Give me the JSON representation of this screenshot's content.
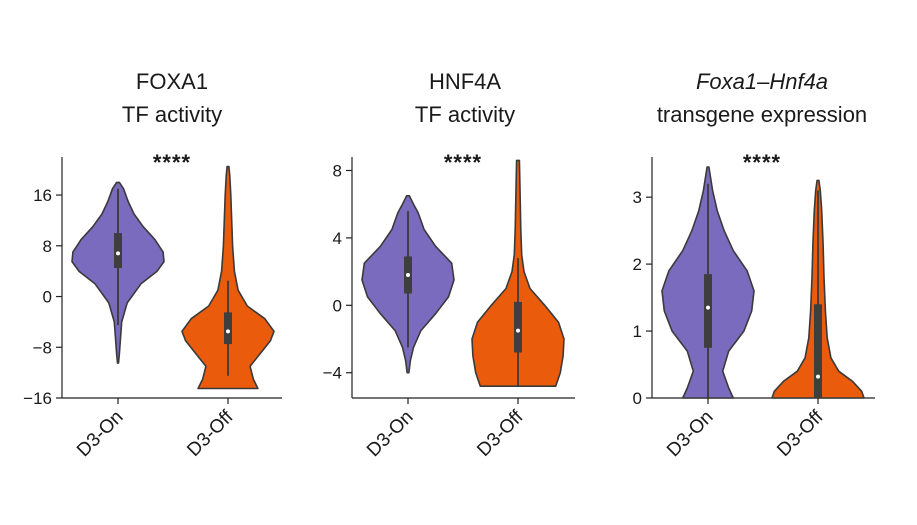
{
  "figure": {
    "colors": {
      "on": "#7a6bbf",
      "off": "#ea5b0c"
    },
    "significance_marker": "****"
  },
  "chart_data": [
    {
      "type": "violin",
      "title": [
        "FOXA1",
        "TF activity"
      ],
      "title_italic_first_line": false,
      "categories": [
        "D3-On",
        "D3-Off"
      ],
      "ylim": [
        -16,
        22
      ],
      "yticks": [
        16,
        8,
        0,
        -8,
        -16
      ],
      "ytick_labels": [
        "16",
        "8",
        "0",
        "−8",
        "−16"
      ],
      "significance": "****",
      "series": [
        {
          "name": "D3-On",
          "color": "#7a6bbf",
          "min": -10.5,
          "max": 18,
          "q1": 4.5,
          "median": 6.8,
          "q3": 10,
          "whisker_low": -4.5,
          "whisker_high": 17,
          "profile": [
            [
              -10.5,
              0.01
            ],
            [
              -9,
              0.03
            ],
            [
              -7,
              0.05
            ],
            [
              -4,
              0.08
            ],
            [
              -1,
              0.2
            ],
            [
              2,
              0.5
            ],
            [
              4,
              0.85
            ],
            [
              5.5,
              1.0
            ],
            [
              7,
              0.98
            ],
            [
              9,
              0.8
            ],
            [
              11,
              0.55
            ],
            [
              13,
              0.35
            ],
            [
              15,
              0.22
            ],
            [
              17,
              0.12
            ],
            [
              18,
              0.03
            ]
          ]
        },
        {
          "name": "D3-Off",
          "color": "#ea5b0c",
          "min": -14.5,
          "max": 20.5,
          "q1": -7.5,
          "median": -5.5,
          "q3": -2.5,
          "whisker_low": -12.5,
          "whisker_high": 2.5,
          "profile": [
            [
              -14.5,
              0.65
            ],
            [
              -13,
              0.55
            ],
            [
              -11,
              0.48
            ],
            [
              -9,
              0.7
            ],
            [
              -7,
              0.92
            ],
            [
              -5.5,
              1.0
            ],
            [
              -3.5,
              0.8
            ],
            [
              -1.5,
              0.42
            ],
            [
              1,
              0.22
            ],
            [
              4,
              0.14
            ],
            [
              8,
              0.1
            ],
            [
              12,
              0.08
            ],
            [
              16,
              0.06
            ],
            [
              19,
              0.04
            ],
            [
              20.5,
              0.02
            ]
          ]
        }
      ]
    },
    {
      "type": "violin",
      "title": [
        "HNF4A",
        "TF activity"
      ],
      "title_italic_first_line": false,
      "categories": [
        "D3-On",
        "D3-Off"
      ],
      "ylim": [
        -5.5,
        8.8
      ],
      "yticks": [
        8,
        4,
        0,
        -4
      ],
      "ytick_labels": [
        "8",
        "4",
        "0",
        "−4"
      ],
      "significance": "****",
      "series": [
        {
          "name": "D3-On",
          "color": "#7a6bbf",
          "min": -4,
          "max": 6.5,
          "q1": 0.7,
          "median": 1.8,
          "q3": 2.9,
          "whisker_low": -2.5,
          "whisker_high": 5.6,
          "profile": [
            [
              -4,
              0.02
            ],
            [
              -3.3,
              0.05
            ],
            [
              -2.5,
              0.12
            ],
            [
              -1.5,
              0.28
            ],
            [
              -0.5,
              0.6
            ],
            [
              0.5,
              0.88
            ],
            [
              1.5,
              1.0
            ],
            [
              2.5,
              0.95
            ],
            [
              3.5,
              0.6
            ],
            [
              4.5,
              0.35
            ],
            [
              5.5,
              0.22
            ],
            [
              6,
              0.12
            ],
            [
              6.5,
              0.03
            ]
          ]
        },
        {
          "name": "D3-Off",
          "color": "#ea5b0c",
          "min": -4.8,
          "max": 8.6,
          "q1": -2.8,
          "median": -1.5,
          "q3": 0.2,
          "whisker_low": -4.8,
          "whisker_high": 2.8,
          "profile": [
            [
              -4.8,
              0.82
            ],
            [
              -4,
              0.92
            ],
            [
              -3,
              0.98
            ],
            [
              -2,
              1.0
            ],
            [
              -1,
              0.88
            ],
            [
              0,
              0.58
            ],
            [
              1,
              0.26
            ],
            [
              2,
              0.13
            ],
            [
              3,
              0.08
            ],
            [
              4.5,
              0.06
            ],
            [
              6,
              0.05
            ],
            [
              7.5,
              0.04
            ],
            [
              8.6,
              0.03
            ]
          ]
        }
      ]
    },
    {
      "type": "violin",
      "title": [
        "Foxa1–Hnf4a",
        "transgene expression"
      ],
      "title_italic_first_line": true,
      "categories": [
        "D3-On",
        "D3-Off"
      ],
      "ylim": [
        0,
        3.6
      ],
      "yticks": [
        3,
        2,
        1,
        0
      ],
      "ytick_labels": [
        "3",
        "2",
        "1",
        "0"
      ],
      "significance": "****",
      "series": [
        {
          "name": "D3-On",
          "color": "#7a6bbf",
          "min": 0,
          "max": 3.45,
          "q1": 0.75,
          "median": 1.35,
          "q3": 1.85,
          "whisker_low": 0,
          "whisker_high": 3.2,
          "profile": [
            [
              0,
              0.55
            ],
            [
              0.15,
              0.45
            ],
            [
              0.4,
              0.32
            ],
            [
              0.7,
              0.45
            ],
            [
              1.0,
              0.78
            ],
            [
              1.3,
              0.95
            ],
            [
              1.6,
              1.0
            ],
            [
              1.9,
              0.85
            ],
            [
              2.2,
              0.55
            ],
            [
              2.5,
              0.35
            ],
            [
              2.8,
              0.2
            ],
            [
              3.1,
              0.1
            ],
            [
              3.45,
              0.02
            ]
          ]
        },
        {
          "name": "D3-Off",
          "color": "#ea5b0c",
          "min": 0,
          "max": 3.25,
          "q1": 0,
          "median": 0.32,
          "q3": 1.4,
          "whisker_low": 0,
          "whisker_high": 3.1,
          "profile": [
            [
              0,
              1.0
            ],
            [
              0.1,
              0.95
            ],
            [
              0.25,
              0.75
            ],
            [
              0.4,
              0.45
            ],
            [
              0.6,
              0.28
            ],
            [
              0.9,
              0.2
            ],
            [
              1.3,
              0.16
            ],
            [
              1.8,
              0.13
            ],
            [
              2.3,
              0.11
            ],
            [
              2.8,
              0.08
            ],
            [
              3.1,
              0.05
            ],
            [
              3.25,
              0.02
            ]
          ]
        }
      ]
    }
  ]
}
